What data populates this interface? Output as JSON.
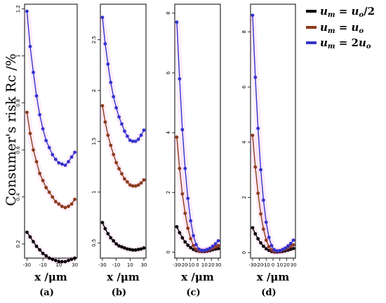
{
  "figure": {
    "ylabel": "Consumer's risk Rc /%",
    "xlabel": "x /μm",
    "legend": [
      {
        "label": "u_m = u_o/2",
        "color": "#000000"
      },
      {
        "label": "u_m = u_o",
        "color": "#8b3a1a"
      },
      {
        "label": "u_m = 2u_o",
        "color": "#3333cc"
      }
    ]
  },
  "chart_data": [
    {
      "type": "line",
      "panel_label": "(a)",
      "x": [
        -30,
        -26,
        -22,
        -18,
        -14,
        -10,
        -6,
        -2,
        2,
        6,
        10,
        14,
        18,
        22,
        26,
        30
      ],
      "ylim": [
        0.14,
        1.22
      ],
      "yticks": [
        0.2,
        0.4,
        0.6,
        0.8,
        1.0,
        1.2
      ],
      "xticks": [
        -30,
        -10,
        10,
        30
      ],
      "series": [
        {
          "name": "u_m = u_o/2",
          "color": "#000000",
          "values": [
            0.25,
            0.23,
            0.21,
            0.19,
            0.175,
            0.16,
            0.15,
            0.14,
            0.135,
            0.13,
            0.125,
            0.125,
            0.125,
            0.13,
            0.135,
            0.14
          ]
        },
        {
          "name": "u_m = u_o",
          "color": "#8b3a1a",
          "values": [
            0.76,
            0.67,
            0.6,
            0.55,
            0.5,
            0.47,
            0.44,
            0.42,
            0.4,
            0.38,
            0.37,
            0.36,
            0.355,
            0.36,
            0.37,
            0.39
          ]
        },
        {
          "name": "u_m = 2u_o",
          "color": "#3333cc",
          "values": [
            1.19,
            1.04,
            0.93,
            0.83,
            0.75,
            0.69,
            0.64,
            0.61,
            0.58,
            0.56,
            0.545,
            0.54,
            0.535,
            0.55,
            0.57,
            0.59
          ]
        }
      ]
    },
    {
      "type": "line",
      "panel_label": "(b)",
      "x": [
        -30,
        -26,
        -22,
        -18,
        -14,
        -10,
        -6,
        -2,
        2,
        6,
        10,
        14,
        18,
        22,
        26,
        30
      ],
      "ylim": [
        0.35,
        2.85
      ],
      "yticks": [
        0.5,
        1.0,
        1.5,
        2.0,
        2.5
      ],
      "xticks": [
        -30,
        -10,
        10,
        30
      ],
      "series": [
        {
          "name": "u_m = u_o/2",
          "color": "#000000",
          "values": [
            0.7,
            0.64,
            0.59,
            0.55,
            0.52,
            0.49,
            0.47,
            0.46,
            0.45,
            0.44,
            0.435,
            0.43,
            0.43,
            0.435,
            0.44,
            0.45
          ]
        },
        {
          "name": "u_m = u_o",
          "color": "#8b3a1a",
          "values": [
            1.85,
            1.69,
            1.56,
            1.46,
            1.37,
            1.29,
            1.23,
            1.18,
            1.13,
            1.1,
            1.07,
            1.06,
            1.06,
            1.07,
            1.09,
            1.12
          ]
        },
        {
          "name": "u_m = 2u_o",
          "color": "#3333cc",
          "values": [
            2.72,
            2.46,
            2.26,
            2.08,
            1.94,
            1.83,
            1.74,
            1.67,
            1.6,
            1.55,
            1.51,
            1.5,
            1.5,
            1.52,
            1.56,
            1.61
          ]
        }
      ]
    },
    {
      "type": "line",
      "panel_label": "(c)",
      "x": [
        -30,
        -26,
        -22,
        -18,
        -14,
        -10,
        -6,
        -2,
        2,
        6,
        10,
        14,
        18,
        22,
        26,
        30
      ],
      "ylim": [
        -0.2,
        8.3
      ],
      "yticks": [
        0,
        2,
        4,
        6,
        8
      ],
      "xticks": [
        -30,
        -20,
        -10,
        0,
        10,
        20,
        30
      ],
      "series": [
        {
          "name": "u_m = u_o/2",
          "color": "#000000",
          "values": [
            0.85,
            0.65,
            0.48,
            0.34,
            0.23,
            0.15,
            0.09,
            0.05,
            0.03,
            0.02,
            0.02,
            0.03,
            0.05,
            0.08,
            0.1,
            0.12
          ]
        },
        {
          "name": "u_m = u_o",
          "color": "#8b3a1a",
          "values": [
            3.85,
            2.8,
            1.95,
            1.3,
            0.8,
            0.45,
            0.22,
            0.1,
            0.05,
            0.04,
            0.05,
            0.07,
            0.1,
            0.14,
            0.18,
            0.22
          ]
        },
        {
          "name": "u_m = 2u_o",
          "color": "#3333cc",
          "values": [
            7.7,
            5.8,
            4.1,
            2.8,
            1.8,
            1.05,
            0.55,
            0.25,
            0.1,
            0.06,
            0.06,
            0.09,
            0.13,
            0.2,
            0.28,
            0.38
          ]
        }
      ]
    },
    {
      "type": "line",
      "panel_label": "(d)",
      "x": [
        -30,
        -26,
        -22,
        -18,
        -14,
        -10,
        -6,
        -2,
        2,
        6,
        10,
        14,
        18,
        22,
        26,
        30
      ],
      "ylim": [
        -0.2,
        9.0
      ],
      "yticks": [
        0,
        2,
        4,
        6,
        8
      ],
      "xticks": [
        -30,
        -20,
        -10,
        0,
        10,
        20,
        30
      ],
      "series": [
        {
          "name": "u_m = u_o/2",
          "color": "#000000",
          "values": [
            0.9,
            0.68,
            0.5,
            0.35,
            0.23,
            0.14,
            0.08,
            0.04,
            0.02,
            0.02,
            0.03,
            0.04,
            0.06,
            0.09,
            0.12,
            0.15
          ]
        },
        {
          "name": "u_m = u_o",
          "color": "#8b3a1a",
          "values": [
            4.25,
            3.1,
            2.15,
            1.4,
            0.85,
            0.45,
            0.22,
            0.1,
            0.05,
            0.05,
            0.06,
            0.09,
            0.13,
            0.18,
            0.23,
            0.28
          ]
        },
        {
          "name": "u_m = 2u_o",
          "color": "#3333cc",
          "values": [
            8.6,
            6.35,
            4.5,
            3.0,
            1.9,
            1.1,
            0.55,
            0.25,
            0.1,
            0.06,
            0.07,
            0.11,
            0.16,
            0.24,
            0.33,
            0.45
          ]
        }
      ]
    }
  ]
}
